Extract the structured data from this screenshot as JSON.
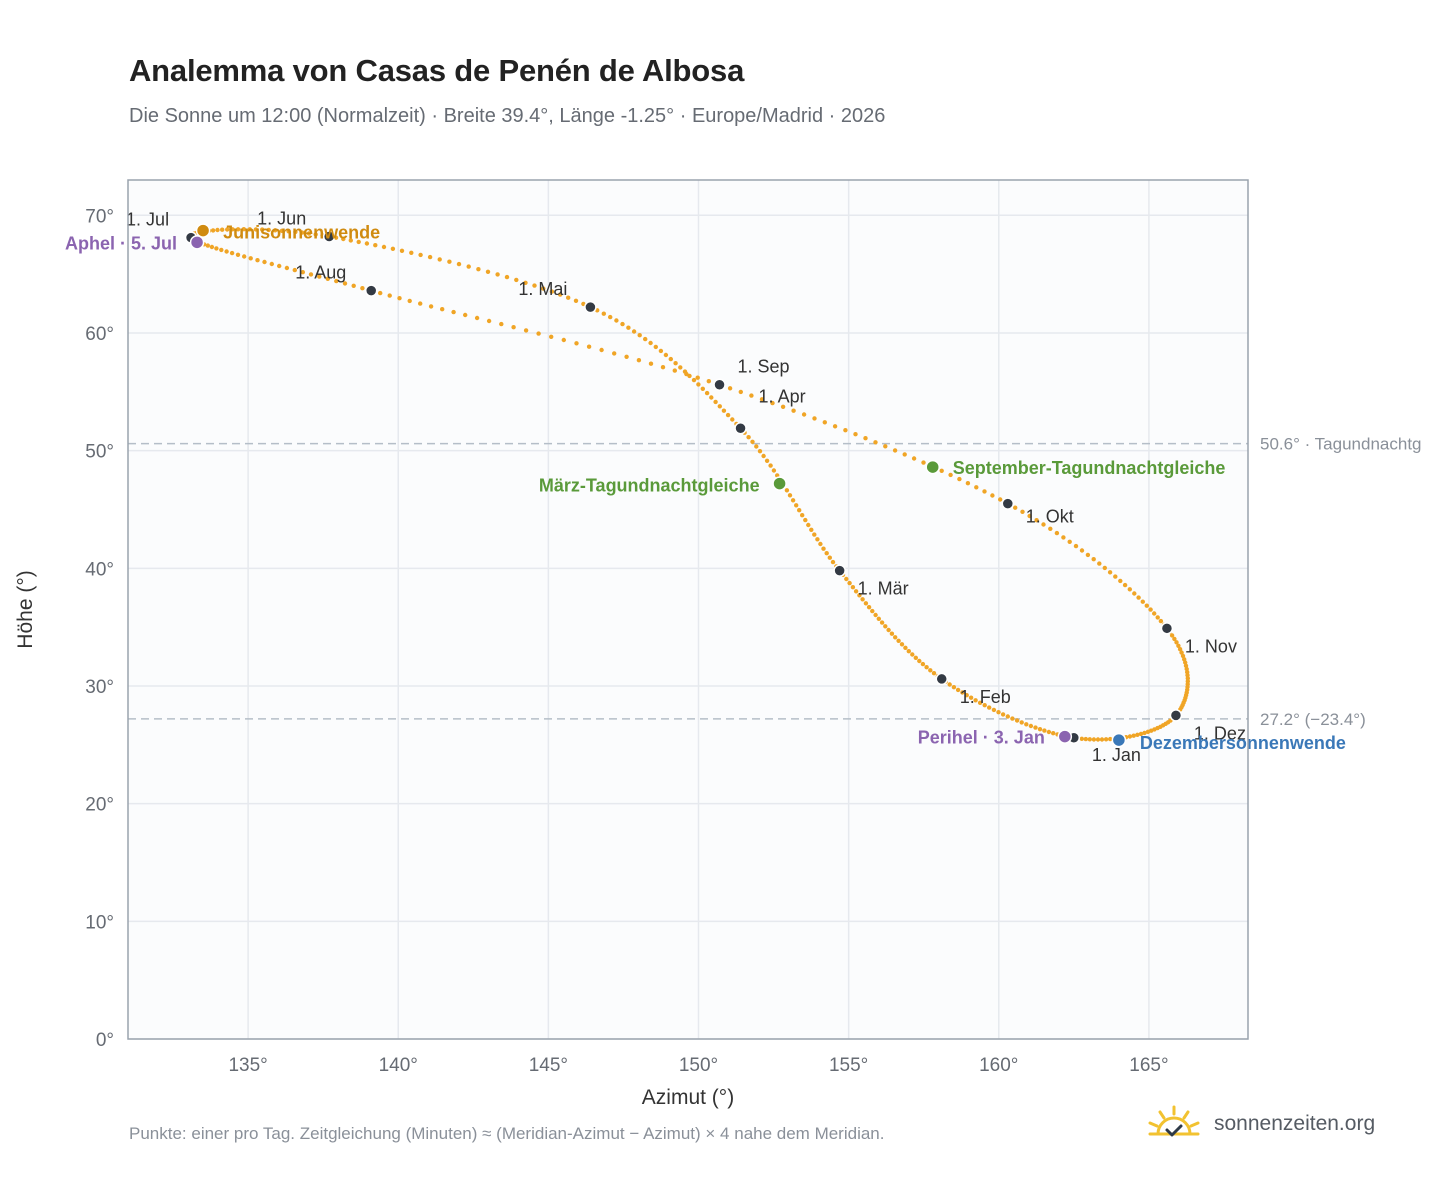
{
  "header": {
    "title": "Analemma von Casas de Penén de Albosa",
    "subtitle": "Die Sonne um 12:00 (Normalzeit) · Breite 39.4°, Länge -1.25° · Europe/Madrid · 2026"
  },
  "footer": {
    "note": "Punkte: einer pro Tag. Zeitgleichung (Minuten) ≈ (Meridian-Azimut − Azimut) × 4 nahe dem Meridian.",
    "brand": "sonnenzeiten.org"
  },
  "colors": {
    "curve": "#f0a526",
    "month_dot": "#333a44",
    "equinox": "#5a9a3a",
    "june_solstice": "#d08b10",
    "december_solstice": "#3a78b8",
    "apsis": "#8b64b0",
    "reference_line": "#b5bec8",
    "grid": "#e6e9ee",
    "plot_background": "#fbfcfd",
    "frame": "#9aa3ad"
  },
  "chart_data": {
    "type": "scatter",
    "xlabel": "Azimut (°)",
    "ylabel": "Höhe (°)",
    "xlim": [
      131,
      168.3
    ],
    "ylim": [
      0,
      73
    ],
    "xticks": [
      135,
      140,
      145,
      150,
      155,
      160,
      165
    ],
    "yticks": [
      0,
      10,
      20,
      30,
      40,
      50,
      60,
      70
    ],
    "tick_suffix": "°",
    "grid": true,
    "month_points": [
      {
        "label": "1. Jan",
        "az": 162.5,
        "alt": 25.6
      },
      {
        "label": "1. Feb",
        "az": 158.1,
        "alt": 30.6
      },
      {
        "label": "1. Mär",
        "az": 154.7,
        "alt": 39.8
      },
      {
        "label": "1. Apr",
        "az": 151.4,
        "alt": 51.9
      },
      {
        "label": "1. Mai",
        "az": 146.4,
        "alt": 62.2
      },
      {
        "label": "1. Jun",
        "az": 137.7,
        "alt": 68.2
      },
      {
        "label": "1. Jul",
        "az": 133.1,
        "alt": 68.1
      },
      {
        "label": "1. Aug",
        "az": 139.1,
        "alt": 63.6
      },
      {
        "label": "1. Sep",
        "az": 150.7,
        "alt": 55.6
      },
      {
        "label": "1. Okt",
        "az": 160.3,
        "alt": 45.5
      },
      {
        "label": "1. Nov",
        "az": 165.6,
        "alt": 34.9
      },
      {
        "label": "1. Dez",
        "az": 165.9,
        "alt": 27.5
      }
    ],
    "events": [
      {
        "label": "März-Tagundnachtgleiche",
        "az": 152.7,
        "alt": 47.2,
        "kind": "equinox"
      },
      {
        "label": "September-Tagundnachtgleiche",
        "az": 157.8,
        "alt": 48.6,
        "kind": "equinox"
      },
      {
        "label": "Junisonnenwende",
        "az": 133.5,
        "alt": 68.7,
        "kind": "june_solstice"
      },
      {
        "label": "Dezembersonnenwende",
        "az": 164.0,
        "alt": 25.4,
        "kind": "december_solstice"
      },
      {
        "label": "Aphel · 5. Jul",
        "az": 133.3,
        "alt": 67.7,
        "kind": "apsis"
      },
      {
        "label": "Perihel · 3. Jan",
        "az": 162.2,
        "alt": 25.7,
        "kind": "apsis"
      }
    ],
    "reference_lines": [
      {
        "value": 50.6,
        "label": "50.6° · Tagundnachtg"
      },
      {
        "value": 27.2,
        "label": "27.2° (−23.4°)"
      }
    ]
  }
}
